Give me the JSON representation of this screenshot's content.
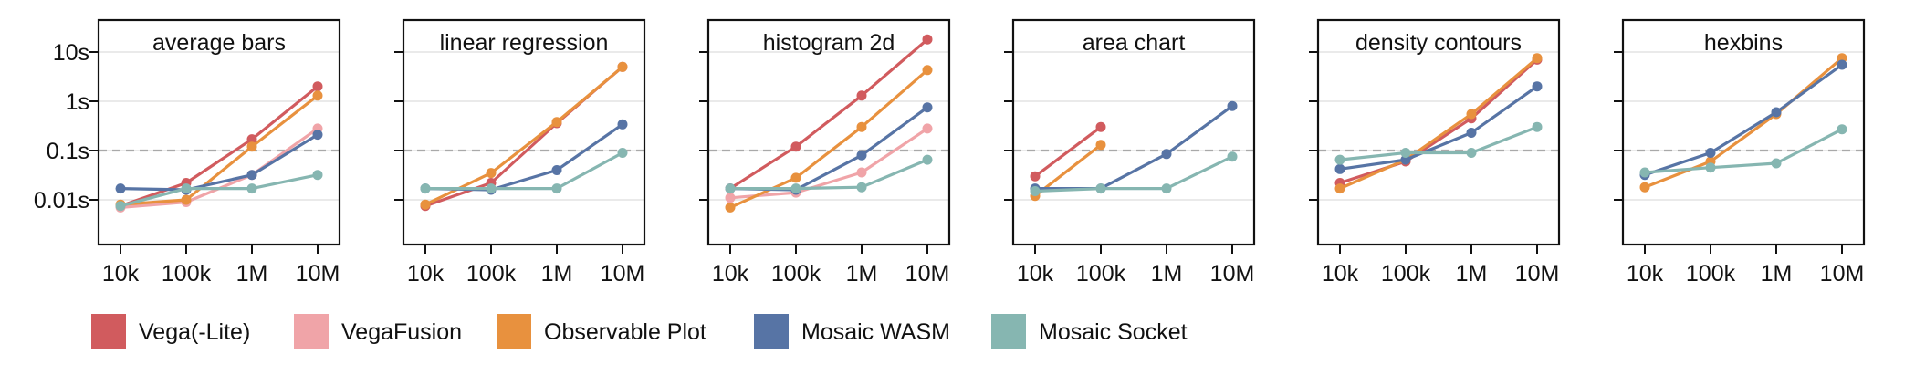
{
  "chart_data": {
    "type": "line",
    "x_scale": "log",
    "y_scale": "log",
    "x_ticks": [
      {
        "label": "10k",
        "value": 10000
      },
      {
        "label": "100k",
        "value": 100000
      },
      {
        "label": "1M",
        "value": 1000000
      },
      {
        "label": "10M",
        "value": 10000000
      }
    ],
    "y_ticks": [
      {
        "label": "10s",
        "value": 10
      },
      {
        "label": "1s",
        "value": 1
      },
      {
        "label": "0.1s",
        "value": 0.1
      },
      {
        "label": "0.01s",
        "value": 0.01
      }
    ],
    "ylim": [
      0.002,
      40
    ],
    "reference_line": {
      "value": 0.1,
      "style": "dashed"
    },
    "grid": true,
    "legend_position": "bottom",
    "series_styles": [
      {
        "name": "Vega(-Lite)",
        "color": "#d15b5e"
      },
      {
        "name": "VegaFusion",
        "color": "#f0a4a8"
      },
      {
        "name": "Observable Plot",
        "color": "#e8913e"
      },
      {
        "name": "Mosaic WASM",
        "color": "#5774a5"
      },
      {
        "name": "Mosaic Socket",
        "color": "#86b6b1"
      }
    ],
    "panels": [
      {
        "title": "average bars",
        "series": [
          {
            "name": "Vega(-Lite)",
            "x": [
              10000,
              100000,
              1000000,
              10000000
            ],
            "y": [
              0.0075,
              0.022,
              0.17,
              2.0
            ]
          },
          {
            "name": "VegaFusion",
            "x": [
              10000,
              100000,
              1000000,
              10000000
            ],
            "y": [
              0.007,
              0.009,
              0.032,
              0.28
            ]
          },
          {
            "name": "Observable Plot",
            "x": [
              10000,
              100000,
              1000000,
              10000000
            ],
            "y": [
              0.008,
              0.01,
              0.12,
              1.3
            ]
          },
          {
            "name": "Mosaic WASM",
            "x": [
              10000,
              100000,
              1000000,
              10000000
            ],
            "y": [
              0.017,
              0.016,
              0.032,
              0.21
            ]
          },
          {
            "name": "Mosaic Socket",
            "x": [
              10000,
              100000,
              1000000,
              10000000
            ],
            "y": [
              0.0075,
              0.017,
              0.017,
              0.032
            ]
          }
        ]
      },
      {
        "title": "linear regression",
        "series": [
          {
            "name": "Vega(-Lite)",
            "x": [
              10000,
              100000,
              1000000,
              10000000
            ],
            "y": [
              0.0075,
              0.022,
              0.36,
              5.0
            ]
          },
          {
            "name": "VegaFusion",
            "x": [],
            "y": []
          },
          {
            "name": "Observable Plot",
            "x": [
              10000,
              100000,
              1000000,
              10000000
            ],
            "y": [
              0.008,
              0.035,
              0.38,
              5.0
            ]
          },
          {
            "name": "Mosaic WASM",
            "x": [
              10000,
              100000,
              1000000,
              10000000
            ],
            "y": [
              0.017,
              0.016,
              0.04,
              0.34
            ]
          },
          {
            "name": "Mosaic Socket",
            "x": [
              10000,
              100000,
              1000000,
              10000000
            ],
            "y": [
              0.017,
              0.017,
              0.017,
              0.09
            ]
          }
        ]
      },
      {
        "title": "histogram 2d",
        "series": [
          {
            "name": "Vega(-Lite)",
            "x": [
              10000,
              100000,
              1000000,
              10000000
            ],
            "y": [
              0.017,
              0.12,
              1.3,
              18
            ]
          },
          {
            "name": "VegaFusion",
            "x": [
              10000,
              100000,
              1000000,
              10000000
            ],
            "y": [
              0.011,
              0.014,
              0.036,
              0.28
            ]
          },
          {
            "name": "Observable Plot",
            "x": [
              10000,
              100000,
              1000000,
              10000000
            ],
            "y": [
              0.007,
              0.028,
              0.3,
              4.3
            ]
          },
          {
            "name": "Mosaic WASM",
            "x": [
              10000,
              100000,
              1000000,
              10000000
            ],
            "y": [
              0.017,
              0.016,
              0.08,
              0.75
            ]
          },
          {
            "name": "Mosaic Socket",
            "x": [
              10000,
              100000,
              1000000,
              10000000
            ],
            "y": [
              0.017,
              0.017,
              0.018,
              0.065
            ]
          }
        ]
      },
      {
        "title": "area chart",
        "series": [
          {
            "name": "Vega(-Lite)",
            "x": [
              10000,
              100000
            ],
            "y": [
              0.03,
              0.3
            ]
          },
          {
            "name": "VegaFusion",
            "x": [],
            "y": []
          },
          {
            "name": "Observable Plot",
            "x": [
              10000,
              100000
            ],
            "y": [
              0.012,
              0.13
            ]
          },
          {
            "name": "Mosaic WASM",
            "x": [
              10000,
              100000,
              1000000,
              10000000
            ],
            "y": [
              0.017,
              0.017,
              0.085,
              0.8
            ]
          },
          {
            "name": "Mosaic Socket",
            "x": [
              10000,
              100000,
              1000000,
              10000000
            ],
            "y": [
              0.015,
              0.017,
              0.017,
              0.075
            ]
          }
        ]
      },
      {
        "title": "density contours",
        "series": [
          {
            "name": "Vega(-Lite)",
            "x": [
              10000,
              100000,
              1000000,
              10000000
            ],
            "y": [
              0.022,
              0.06,
              0.45,
              7.0
            ]
          },
          {
            "name": "VegaFusion",
            "x": [],
            "y": []
          },
          {
            "name": "Observable Plot",
            "x": [
              10000,
              100000,
              1000000,
              10000000
            ],
            "y": [
              0.017,
              0.065,
              0.55,
              7.5
            ]
          },
          {
            "name": "Mosaic WASM",
            "x": [
              10000,
              100000,
              1000000,
              10000000
            ],
            "y": [
              0.042,
              0.065,
              0.23,
              2.0
            ]
          },
          {
            "name": "Mosaic Socket",
            "x": [
              10000,
              100000,
              1000000,
              10000000
            ],
            "y": [
              0.065,
              0.09,
              0.09,
              0.3
            ]
          }
        ]
      },
      {
        "title": "hexbins",
        "series": [
          {
            "name": "Vega(-Lite)",
            "x": [],
            "y": []
          },
          {
            "name": "VegaFusion",
            "x": [],
            "y": []
          },
          {
            "name": "Observable Plot",
            "x": [
              10000,
              100000,
              1000000,
              10000000
            ],
            "y": [
              0.018,
              0.06,
              0.55,
              7.5
            ]
          },
          {
            "name": "Mosaic WASM",
            "x": [
              10000,
              100000,
              1000000,
              10000000
            ],
            "y": [
              0.032,
              0.09,
              0.6,
              5.5
            ]
          },
          {
            "name": "Mosaic Socket",
            "x": [
              10000,
              100000,
              1000000,
              10000000
            ],
            "y": [
              0.036,
              0.045,
              0.055,
              0.27
            ]
          }
        ]
      }
    ]
  }
}
